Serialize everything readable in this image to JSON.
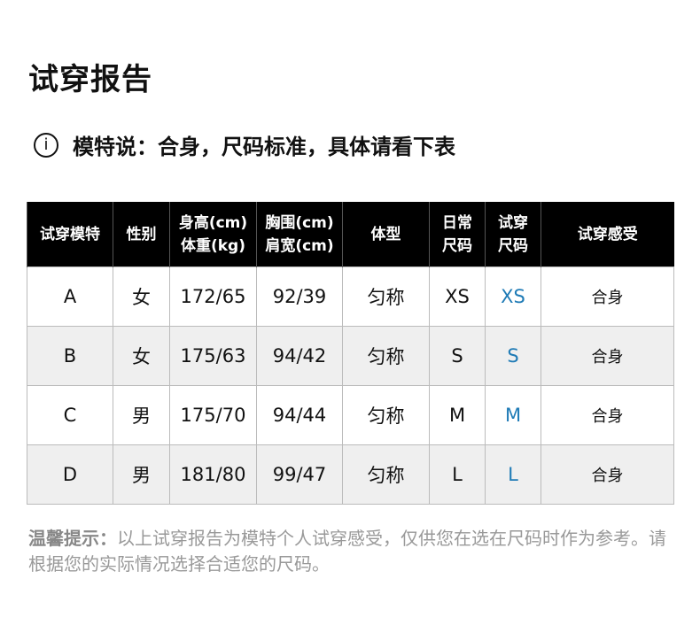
{
  "title": "试穿报告",
  "subtitle": {
    "icon": "info-icon",
    "text": "模特说：合身，尺码标准，具体请看下表"
  },
  "table": {
    "headers": [
      [
        "试穿模特"
      ],
      [
        "性别"
      ],
      [
        "身高(cm)",
        "体重(kg)"
      ],
      [
        "胸围(cm)",
        "肩宽(cm)"
      ],
      [
        "体型"
      ],
      [
        "日常",
        "尺码"
      ],
      [
        "试穿",
        "尺码"
      ],
      [
        "试穿感受"
      ]
    ],
    "rows": [
      [
        "A",
        "女",
        "172/65",
        "92/39",
        "匀称",
        "XS",
        "XS",
        "合身"
      ],
      [
        "B",
        "女",
        "175/63",
        "94/42",
        "匀称",
        "S",
        "S",
        "合身"
      ],
      [
        "C",
        "男",
        "175/70",
        "94/44",
        "匀称",
        "M",
        "M",
        "合身"
      ],
      [
        "D",
        "男",
        "181/80",
        "99/47",
        "匀称",
        "L",
        "L",
        "合身"
      ]
    ]
  },
  "note": {
    "label": "温馨提示：",
    "text": "以上试穿报告为模特个人试穿感受，仅供您在选在尺码时作为参考。请根据您的实际情况选择合适您的尺码。"
  },
  "colors": {
    "highlight": "#1f7bb6",
    "alt_row": "#efefef"
  }
}
